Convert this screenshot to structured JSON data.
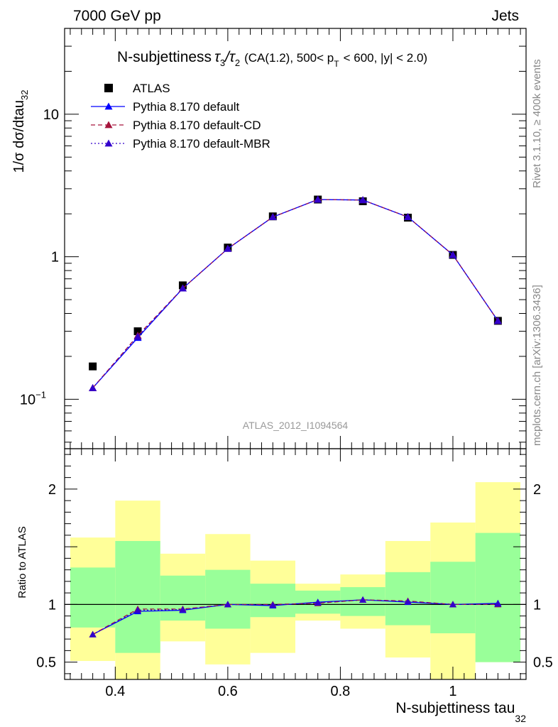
{
  "header": {
    "left": "7000 GeV pp",
    "right": "Jets"
  },
  "side_labels": {
    "rivet": "Rivet 3.1.10, ≥ 400k events",
    "mcplots": "mcplots.cern.ch [arXiv:1306.3436]"
  },
  "watermark": "ATLAS_2012_I1094564",
  "chart_data": [
    {
      "type": "line",
      "panel": "main",
      "title": "N-subjettiness τ₃/τ₂ (CA(1.2), 500< p_T < 600, |y| < 2.0)",
      "title_parts": {
        "main": "N-subjettiness",
        "tau3": "τ",
        "sub3": "3",
        "slash": "/τ",
        "sub2": "2",
        "cut1": "(CA(1.2), 500< p",
        "subT": "T",
        "cut2": "< 600, |y| < 2.0)"
      },
      "ylabel": "1/σ dσ/dtau",
      "ylabel_sub": "32",
      "yscale": "log",
      "ylim": [
        0.045,
        40
      ],
      "xlim": [
        0.31,
        1.13
      ],
      "y_ticks": [
        {
          "value": 0.1,
          "label": "10",
          "sup": "−1"
        },
        {
          "value": 1,
          "label": "1",
          "sup": ""
        },
        {
          "value": 10,
          "label": "10",
          "sup": ""
        }
      ],
      "legend_position": "top-left",
      "x": [
        0.36,
        0.44,
        0.52,
        0.6,
        0.68,
        0.76,
        0.84,
        0.92,
        1.0,
        1.08
      ],
      "series": [
        {
          "name": "ATLAS",
          "marker": "square",
          "color": "#000000",
          "values": [
            0.17,
            0.3,
            0.63,
            1.16,
            1.92,
            2.52,
            2.45,
            1.88,
            1.03,
            0.355
          ]
        },
        {
          "name": "Pythia 8.170 default",
          "marker": "triangle",
          "color": "#0000ff",
          "dash": "solid",
          "values": [
            0.12,
            0.27,
            0.6,
            1.14,
            1.9,
            2.52,
            2.5,
            1.9,
            1.03,
            0.355
          ]
        },
        {
          "name": "Pythia 8.170 default-CD",
          "marker": "triangle",
          "color": "#a6143c",
          "dash": "dashed",
          "values": [
            0.12,
            0.28,
            0.6,
            1.14,
            1.9,
            2.52,
            2.5,
            1.9,
            1.03,
            0.355
          ]
        },
        {
          "name": "Pythia 8.170 default-MBR",
          "marker": "triangle",
          "color": "#3300cc",
          "dash": "dotted",
          "values": [
            0.12,
            0.275,
            0.6,
            1.14,
            1.9,
            2.52,
            2.5,
            1.9,
            1.03,
            0.355
          ]
        }
      ]
    },
    {
      "type": "line",
      "panel": "ratio",
      "ylabel": "Ratio to ATLAS",
      "xlabel": "N-subjettiness tau",
      "xlabel_sub": "32",
      "xlim": [
        0.31,
        1.13
      ],
      "ylim": [
        0.35,
        2.35
      ],
      "x_ticks": [
        {
          "value": 0.4,
          "label": "0.4"
        },
        {
          "value": 0.6,
          "label": "0.6"
        },
        {
          "value": 0.8,
          "label": "0.8"
        },
        {
          "value": 1.0,
          "label": "1"
        }
      ],
      "y_ticks": [
        {
          "value": 0.5,
          "label": "0.5"
        },
        {
          "value": 1,
          "label": "1"
        },
        {
          "value": 2,
          "label": "2"
        }
      ],
      "bands": {
        "x_edges": [
          0.32,
          0.4,
          0.48,
          0.56,
          0.64,
          0.72,
          0.8,
          0.88,
          0.96,
          1.04,
          1.12
        ],
        "yellow_low": [
          0.51,
          0.3,
          0.68,
          0.48,
          0.58,
          0.86,
          0.79,
          0.54,
          0.3,
          0.5
        ],
        "yellow_high": [
          1.58,
          1.9,
          1.44,
          1.61,
          1.38,
          1.18,
          1.26,
          1.55,
          1.71,
          2.06
        ],
        "green_low": [
          0.8,
          0.58,
          0.86,
          0.79,
          0.89,
          0.92,
          0.9,
          0.82,
          0.75,
          0.5
        ],
        "green_high": [
          1.32,
          1.55,
          1.25,
          1.3,
          1.18,
          1.12,
          1.15,
          1.28,
          1.37,
          1.62
        ]
      },
      "x": [
        0.36,
        0.44,
        0.52,
        0.6,
        0.68,
        0.76,
        0.84,
        0.92,
        1.0,
        1.08
      ],
      "series": [
        {
          "name": "Pythia 8.170 default",
          "color": "#0000ff",
          "dash": "solid",
          "values": [
            0.74,
            0.94,
            0.95,
            1.0,
            0.99,
            1.02,
            1.04,
            1.02,
            1.0,
            1.01
          ]
        },
        {
          "name": "Pythia 8.170 default-CD",
          "color": "#a6143c",
          "dash": "dashed",
          "values": [
            0.74,
            0.96,
            0.96,
            1.0,
            1.0,
            1.01,
            1.04,
            1.03,
            1.0,
            1.0
          ]
        },
        {
          "name": "Pythia 8.170 default-MBR",
          "color": "#3300cc",
          "dash": "dotted",
          "values": [
            0.74,
            0.95,
            0.955,
            1.0,
            0.995,
            1.015,
            1.04,
            1.025,
            1.0,
            1.005
          ]
        }
      ]
    }
  ]
}
